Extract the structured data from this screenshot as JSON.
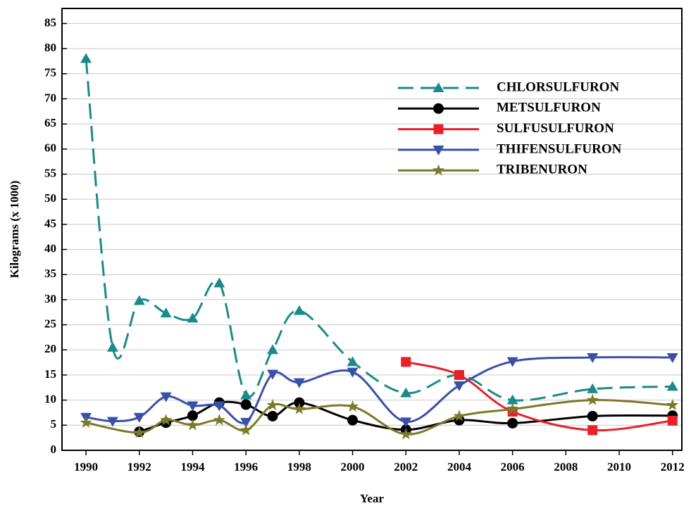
{
  "chart_data": {
    "type": "line",
    "x_label": "Year",
    "y_label": "Kilograms (x 1000)",
    "xlim": [
      1989.1,
      2012.35
    ],
    "ylim": [
      0,
      88
    ],
    "xticks": [
      1990,
      1992,
      1994,
      1996,
      1998,
      2000,
      2002,
      2004,
      2006,
      2008,
      2010,
      2012
    ],
    "yticks": [
      0,
      5,
      10,
      15,
      20,
      25,
      30,
      35,
      40,
      45,
      50,
      55,
      60,
      65,
      70,
      75,
      80,
      85
    ],
    "grid": true,
    "legend": "upper right",
    "smooth": true,
    "series": [
      {
        "name": "CHLORSULFURON",
        "color": "#1b8a8a",
        "marker": "triangle-up",
        "dashed": true,
        "x": [
          1990,
          1991,
          1992,
          1993,
          1994,
          1995,
          1996,
          1997,
          1998,
          2000,
          2002,
          2004,
          2006,
          2009,
          2012
        ],
        "values": [
          78,
          20.5,
          29.8,
          27.3,
          26.3,
          33.3,
          11,
          20,
          27.8,
          17.6,
          11.4,
          15,
          10,
          12.2,
          12.7
        ]
      },
      {
        "name": "METSULFURON",
        "color": "#000000",
        "marker": "circle",
        "dashed": false,
        "x": [
          1992,
          1993,
          1994,
          1995,
          1996,
          1997,
          1998,
          2000,
          2002,
          2004,
          2006,
          2009,
          2012
        ],
        "values": [
          3.7,
          5.5,
          6.9,
          9.5,
          9.1,
          6.8,
          9.5,
          6,
          4.1,
          6,
          5.4,
          6.8,
          6.9
        ]
      },
      {
        "name": "SULFUSULFURON",
        "color": "#e8202a",
        "marker": "square",
        "dashed": false,
        "x": [
          2002,
          2004,
          2006,
          2009,
          2012
        ],
        "values": [
          17.6,
          15,
          7.7,
          4,
          5.9
        ]
      },
      {
        "name": "THIFENSULFURON",
        "color": "#3a4fa8",
        "marker": "triangle-down",
        "dashed": false,
        "x": [
          1990,
          1991,
          1992,
          1993,
          1994,
          1995,
          1996,
          1997,
          1998,
          2000,
          2002,
          2004,
          2006,
          2009,
          2012
        ],
        "values": [
          6.6,
          5.8,
          6.6,
          10.7,
          8.9,
          8.9,
          5.6,
          15.2,
          13.5,
          15.6,
          5.7,
          12.9,
          17.7,
          18.5,
          18.5
        ]
      },
      {
        "name": "TRIBENURON",
        "color": "#7a7a2a",
        "marker": "star",
        "dashed": false,
        "x": [
          1990,
          1992,
          1993,
          1994,
          1995,
          1996,
          1997,
          1998,
          2000,
          2002,
          2004,
          2006,
          2009,
          2012
        ],
        "values": [
          5.5,
          3.5,
          6,
          5,
          6,
          4,
          9,
          8.2,
          8.7,
          3.2,
          6.8,
          8.2,
          10,
          9
        ]
      }
    ]
  }
}
